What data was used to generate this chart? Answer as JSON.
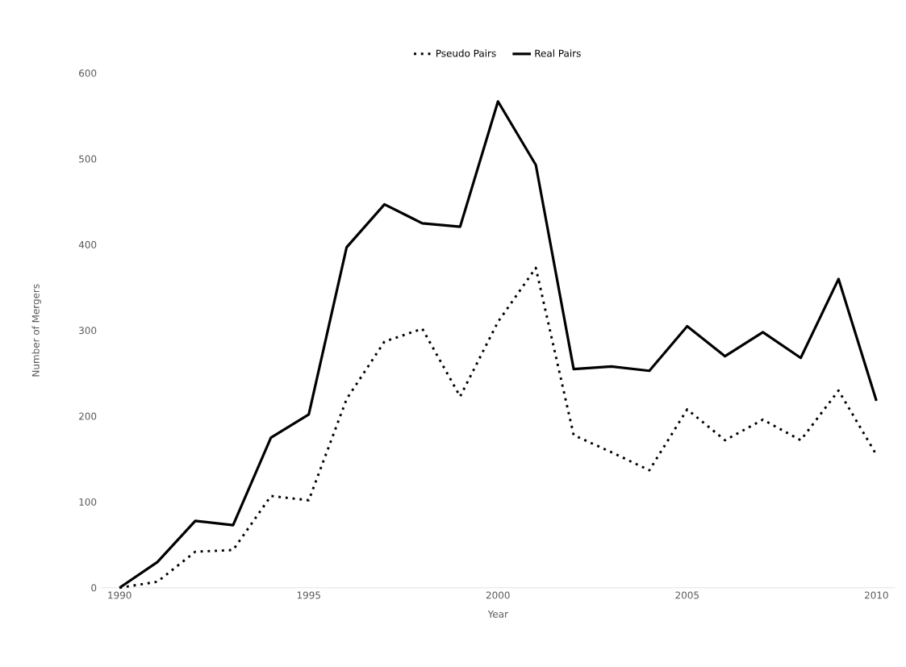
{
  "chart_data": {
    "type": "line",
    "xlabel": "Year",
    "ylabel": "Number of Mergers",
    "x": [
      1990,
      1991,
      1992,
      1993,
      1994,
      1995,
      1996,
      1997,
      1998,
      1999,
      2000,
      2001,
      2002,
      2003,
      2004,
      2005,
      2006,
      2007,
      2008,
      2009,
      2010
    ],
    "xlim": [
      1989.5,
      2010.5
    ],
    "xticks": [
      1990,
      1995,
      2000,
      2005,
      2010
    ],
    "ylim": [
      0,
      600
    ],
    "yticks": [
      0,
      100,
      200,
      300,
      400,
      500,
      600
    ],
    "grid": false,
    "legend": "top",
    "marker": "none",
    "series": [
      {
        "name": "Pseudo Pairs",
        "color": "#000000",
        "line_style": "dotted",
        "values": [
          0,
          7,
          42,
          44,
          107,
          102,
          220,
          287,
          302,
          223,
          310,
          373,
          178,
          158,
          137,
          208,
          172,
          196,
          172,
          230,
          155
        ]
      },
      {
        "name": "Real Pairs",
        "color": "#000000",
        "line_style": "solid",
        "values": [
          0,
          30,
          78,
          73,
          175,
          202,
          397,
          447,
          425,
          421,
          567,
          493,
          255,
          258,
          253,
          305,
          270,
          298,
          268,
          360,
          218
        ]
      }
    ]
  }
}
